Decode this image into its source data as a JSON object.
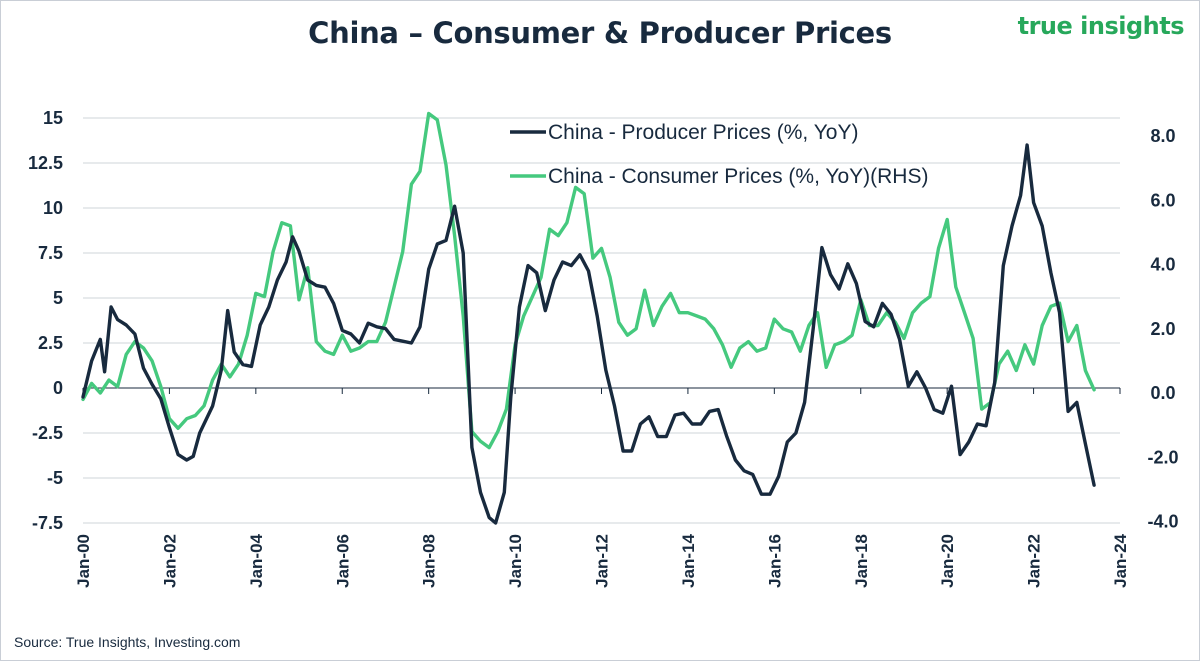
{
  "title": "China – Consumer & Producer Prices",
  "brand": "true insights",
  "source": "Source: True Insights, Investing.com",
  "colors": {
    "ppi": "#182a3e",
    "cpi": "#45c97e",
    "grid": "#cfd4da",
    "text": "#182a3e",
    "brand": "#27a85b"
  },
  "chart_data": {
    "type": "line",
    "grid": true,
    "legend_position": "top-center",
    "x_ticks": [
      "Jan-00",
      "Jan-02",
      "Jan-04",
      "Jan-06",
      "Jan-08",
      "Jan-10",
      "Jan-12",
      "Jan-14",
      "Jan-16",
      "Jan-18",
      "Jan-20",
      "Jan-22",
      "Jan-24"
    ],
    "x_range": [
      2000.0,
      2024.0
    ],
    "y_left": {
      "range": [
        -7.5,
        15
      ],
      "ticks": [
        "-7.5",
        "-5",
        "-2.5",
        "0",
        "2.5",
        "5",
        "7.5",
        "10",
        "12.5",
        "15"
      ]
    },
    "y_right": {
      "range": [
        -4.0,
        9.2
      ],
      "ticks": [
        "-4.0",
        "-2.0",
        "0.0",
        "2.0",
        "4.0",
        "6.0",
        "8.0"
      ]
    },
    "series": [
      {
        "name": "China - Producer Prices (%, YoY)",
        "axis": "left",
        "points": [
          [
            2000.0,
            -0.5
          ],
          [
            2000.2,
            1.5
          ],
          [
            2000.4,
            2.7
          ],
          [
            2000.5,
            0.9
          ],
          [
            2000.65,
            4.5
          ],
          [
            2000.8,
            3.8
          ],
          [
            2001.0,
            3.5
          ],
          [
            2001.2,
            3.0
          ],
          [
            2001.4,
            1.1
          ],
          [
            2001.6,
            0.2
          ],
          [
            2001.8,
            -0.6
          ],
          [
            2002.0,
            -2.2
          ],
          [
            2002.2,
            -3.7
          ],
          [
            2002.4,
            -4.0
          ],
          [
            2002.55,
            -3.8
          ],
          [
            2002.7,
            -2.5
          ],
          [
            2002.9,
            -1.5
          ],
          [
            2003.0,
            -1.0
          ],
          [
            2003.2,
            1.0
          ],
          [
            2003.35,
            4.3
          ],
          [
            2003.5,
            2.0
          ],
          [
            2003.7,
            1.3
          ],
          [
            2003.9,
            1.2
          ],
          [
            2004.1,
            3.5
          ],
          [
            2004.3,
            4.5
          ],
          [
            2004.5,
            6.0
          ],
          [
            2004.7,
            7.0
          ],
          [
            2004.85,
            8.4
          ],
          [
            2005.0,
            7.6
          ],
          [
            2005.2,
            6.0
          ],
          [
            2005.4,
            5.7
          ],
          [
            2005.6,
            5.6
          ],
          [
            2005.8,
            4.7
          ],
          [
            2006.0,
            3.2
          ],
          [
            2006.2,
            3.0
          ],
          [
            2006.4,
            2.5
          ],
          [
            2006.6,
            3.6
          ],
          [
            2006.8,
            3.4
          ],
          [
            2007.0,
            3.3
          ],
          [
            2007.2,
            2.7
          ],
          [
            2007.4,
            2.6
          ],
          [
            2007.6,
            2.5
          ],
          [
            2007.8,
            3.4
          ],
          [
            2008.0,
            6.6
          ],
          [
            2008.2,
            8.0
          ],
          [
            2008.4,
            8.2
          ],
          [
            2008.6,
            10.1
          ],
          [
            2008.8,
            7.5
          ],
          [
            2009.0,
            -3.3
          ],
          [
            2009.2,
            -5.8
          ],
          [
            2009.4,
            -7.2
          ],
          [
            2009.55,
            -7.9
          ],
          [
            2009.75,
            -5.8
          ],
          [
            2009.9,
            -0.5
          ],
          [
            2010.1,
            4.5
          ],
          [
            2010.3,
            6.8
          ],
          [
            2010.5,
            6.4
          ],
          [
            2010.7,
            4.3
          ],
          [
            2010.9,
            6.0
          ],
          [
            2011.1,
            7.0
          ],
          [
            2011.3,
            6.8
          ],
          [
            2011.5,
            7.4
          ],
          [
            2011.7,
            6.5
          ],
          [
            2011.9,
            4.0
          ],
          [
            2012.1,
            1.0
          ],
          [
            2012.3,
            -1.0
          ],
          [
            2012.5,
            -3.5
          ],
          [
            2012.7,
            -3.5
          ],
          [
            2012.9,
            -2.0
          ],
          [
            2013.1,
            -1.6
          ],
          [
            2013.3,
            -2.7
          ],
          [
            2013.5,
            -2.7
          ],
          [
            2013.7,
            -1.5
          ],
          [
            2013.9,
            -1.4
          ],
          [
            2014.1,
            -2.0
          ],
          [
            2014.3,
            -2.0
          ],
          [
            2014.5,
            -1.3
          ],
          [
            2014.7,
            -1.2
          ],
          [
            2014.9,
            -2.7
          ],
          [
            2015.1,
            -4.0
          ],
          [
            2015.3,
            -4.6
          ],
          [
            2015.5,
            -4.8
          ],
          [
            2015.7,
            -5.9
          ],
          [
            2015.9,
            -5.9
          ],
          [
            2016.1,
            -4.9
          ],
          [
            2016.3,
            -3.0
          ],
          [
            2016.5,
            -2.5
          ],
          [
            2016.7,
            -0.8
          ],
          [
            2016.9,
            3.3
          ],
          [
            2017.1,
            7.8
          ],
          [
            2017.3,
            6.3
          ],
          [
            2017.5,
            5.5
          ],
          [
            2017.7,
            6.9
          ],
          [
            2017.9,
            5.8
          ],
          [
            2018.1,
            3.7
          ],
          [
            2018.3,
            3.4
          ],
          [
            2018.5,
            4.7
          ],
          [
            2018.7,
            4.1
          ],
          [
            2018.9,
            2.7
          ],
          [
            2019.1,
            0.1
          ],
          [
            2019.3,
            0.9
          ],
          [
            2019.5,
            0.0
          ],
          [
            2019.7,
            -1.2
          ],
          [
            2019.9,
            -1.4
          ],
          [
            2020.1,
            0.1
          ],
          [
            2020.3,
            -3.7
          ],
          [
            2020.5,
            -3.0
          ],
          [
            2020.7,
            -2.0
          ],
          [
            2020.9,
            -2.1
          ],
          [
            2021.1,
            0.3
          ],
          [
            2021.3,
            6.8
          ],
          [
            2021.5,
            9.0
          ],
          [
            2021.7,
            10.7
          ],
          [
            2021.85,
            13.5
          ],
          [
            2022.0,
            10.3
          ],
          [
            2022.2,
            9.0
          ],
          [
            2022.4,
            6.4
          ],
          [
            2022.6,
            4.2
          ],
          [
            2022.8,
            -1.3
          ],
          [
            2023.0,
            -0.8
          ],
          [
            2023.2,
            -3.1
          ],
          [
            2023.4,
            -5.4
          ]
        ]
      },
      {
        "name": "China - Consumer Prices (%, YoY)(RHS)",
        "axis": "right",
        "points": [
          [
            2000.0,
            -0.2
          ],
          [
            2000.2,
            0.3
          ],
          [
            2000.4,
            0.0
          ],
          [
            2000.6,
            0.4
          ],
          [
            2000.8,
            0.2
          ],
          [
            2001.0,
            1.2
          ],
          [
            2001.2,
            1.6
          ],
          [
            2001.4,
            1.4
          ],
          [
            2001.6,
            1.0
          ],
          [
            2001.8,
            0.2
          ],
          [
            2002.0,
            -0.8
          ],
          [
            2002.2,
            -1.1
          ],
          [
            2002.4,
            -0.8
          ],
          [
            2002.6,
            -0.7
          ],
          [
            2002.8,
            -0.4
          ],
          [
            2003.0,
            0.4
          ],
          [
            2003.2,
            0.9
          ],
          [
            2003.4,
            0.5
          ],
          [
            2003.6,
            0.9
          ],
          [
            2003.8,
            1.8
          ],
          [
            2004.0,
            3.1
          ],
          [
            2004.2,
            3.0
          ],
          [
            2004.4,
            4.4
          ],
          [
            2004.6,
            5.3
          ],
          [
            2004.8,
            5.2
          ],
          [
            2005.0,
            2.9
          ],
          [
            2005.2,
            3.9
          ],
          [
            2005.4,
            1.6
          ],
          [
            2005.6,
            1.3
          ],
          [
            2005.8,
            1.2
          ],
          [
            2006.0,
            1.8
          ],
          [
            2006.2,
            1.3
          ],
          [
            2006.4,
            1.4
          ],
          [
            2006.6,
            1.6
          ],
          [
            2006.8,
            1.6
          ],
          [
            2007.0,
            2.2
          ],
          [
            2007.2,
            3.3
          ],
          [
            2007.4,
            4.4
          ],
          [
            2007.6,
            6.5
          ],
          [
            2007.8,
            6.9
          ],
          [
            2008.0,
            8.7
          ],
          [
            2008.2,
            8.5
          ],
          [
            2008.4,
            7.1
          ],
          [
            2008.6,
            4.9
          ],
          [
            2008.8,
            2.4
          ],
          [
            2009.0,
            -1.2
          ],
          [
            2009.2,
            -1.5
          ],
          [
            2009.4,
            -1.7
          ],
          [
            2009.6,
            -1.2
          ],
          [
            2009.8,
            -0.5
          ],
          [
            2010.0,
            1.5
          ],
          [
            2010.2,
            2.4
          ],
          [
            2010.4,
            3.0
          ],
          [
            2010.6,
            3.6
          ],
          [
            2010.8,
            5.1
          ],
          [
            2011.0,
            4.9
          ],
          [
            2011.2,
            5.3
          ],
          [
            2011.4,
            6.4
          ],
          [
            2011.6,
            6.2
          ],
          [
            2011.8,
            4.2
          ],
          [
            2012.0,
            4.5
          ],
          [
            2012.2,
            3.6
          ],
          [
            2012.4,
            2.2
          ],
          [
            2012.6,
            1.8
          ],
          [
            2012.8,
            2.0
          ],
          [
            2013.0,
            3.2
          ],
          [
            2013.2,
            2.1
          ],
          [
            2013.4,
            2.7
          ],
          [
            2013.6,
            3.1
          ],
          [
            2013.8,
            2.5
          ],
          [
            2014.0,
            2.5
          ],
          [
            2014.2,
            2.4
          ],
          [
            2014.4,
            2.3
          ],
          [
            2014.6,
            2.0
          ],
          [
            2014.8,
            1.5
          ],
          [
            2015.0,
            0.8
          ],
          [
            2015.2,
            1.4
          ],
          [
            2015.4,
            1.6
          ],
          [
            2015.6,
            1.3
          ],
          [
            2015.8,
            1.4
          ],
          [
            2016.0,
            2.3
          ],
          [
            2016.2,
            2.0
          ],
          [
            2016.4,
            1.9
          ],
          [
            2016.6,
            1.3
          ],
          [
            2016.8,
            2.1
          ],
          [
            2017.0,
            2.5
          ],
          [
            2017.2,
            0.8
          ],
          [
            2017.4,
            1.5
          ],
          [
            2017.6,
            1.6
          ],
          [
            2017.8,
            1.8
          ],
          [
            2018.0,
            2.9
          ],
          [
            2018.2,
            2.1
          ],
          [
            2018.4,
            2.1
          ],
          [
            2018.6,
            2.5
          ],
          [
            2018.8,
            2.2
          ],
          [
            2019.0,
            1.7
          ],
          [
            2019.2,
            2.5
          ],
          [
            2019.4,
            2.8
          ],
          [
            2019.6,
            3.0
          ],
          [
            2019.8,
            4.5
          ],
          [
            2020.0,
            5.4
          ],
          [
            2020.2,
            3.3
          ],
          [
            2020.4,
            2.5
          ],
          [
            2020.6,
            1.7
          ],
          [
            2020.8,
            -0.5
          ],
          [
            2021.0,
            -0.3
          ],
          [
            2021.2,
            0.9
          ],
          [
            2021.4,
            1.3
          ],
          [
            2021.6,
            0.7
          ],
          [
            2021.8,
            1.5
          ],
          [
            2022.0,
            0.9
          ],
          [
            2022.2,
            2.1
          ],
          [
            2022.4,
            2.7
          ],
          [
            2022.6,
            2.8
          ],
          [
            2022.8,
            1.6
          ],
          [
            2023.0,
            2.1
          ],
          [
            2023.2,
            0.7
          ],
          [
            2023.4,
            0.1
          ]
        ]
      }
    ]
  }
}
